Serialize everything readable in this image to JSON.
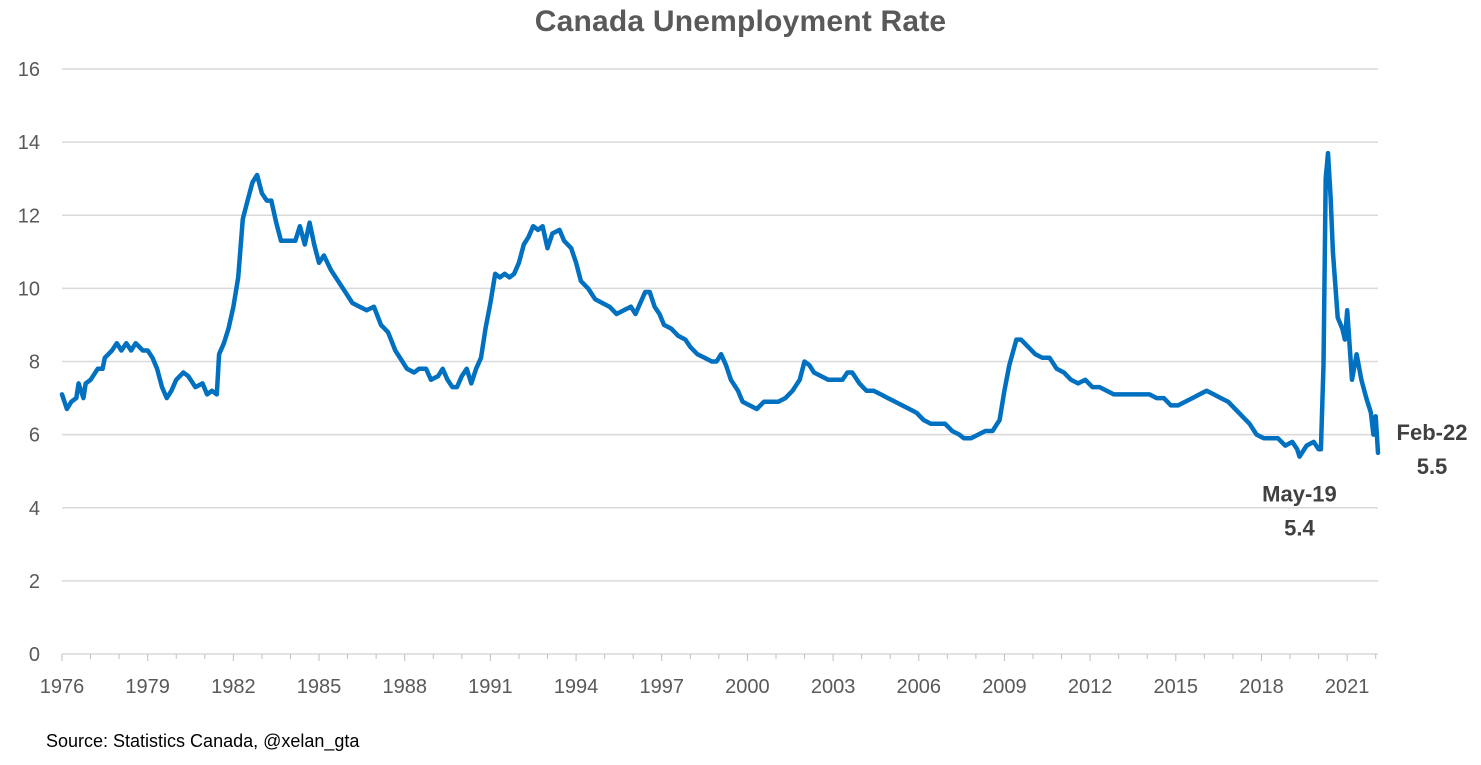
{
  "chart_data": {
    "type": "line",
    "title": "Canada Unemployment Rate",
    "xlabel": "",
    "ylabel": "",
    "ylim": [
      0,
      16
    ],
    "y_ticks": [
      "0",
      "2",
      "4",
      "6",
      "8",
      "10",
      "12",
      "14",
      "16"
    ],
    "x_ticks": [
      "1976",
      "1979",
      "1982",
      "1985",
      "1988",
      "1991",
      "1994",
      "1997",
      "2000",
      "2003",
      "2006",
      "2009",
      "2012",
      "2015",
      "2018",
      "2021"
    ],
    "x_range": [
      1976.0,
      2022.08
    ],
    "grid": true,
    "legend": "none",
    "series": [
      {
        "color": "#0070C0",
        "points": [
          [
            1976.0,
            7.1
          ],
          [
            1976.17,
            6.7
          ],
          [
            1976.33,
            6.9
          ],
          [
            1976.5,
            7.0
          ],
          [
            1976.58,
            7.4
          ],
          [
            1976.75,
            7.0
          ],
          [
            1976.83,
            7.4
          ],
          [
            1977.0,
            7.5
          ],
          [
            1977.25,
            7.8
          ],
          [
            1977.42,
            7.8
          ],
          [
            1977.5,
            8.1
          ],
          [
            1977.75,
            8.3
          ],
          [
            1977.92,
            8.5
          ],
          [
            1978.08,
            8.3
          ],
          [
            1978.25,
            8.5
          ],
          [
            1978.42,
            8.3
          ],
          [
            1978.58,
            8.5
          ],
          [
            1978.83,
            8.3
          ],
          [
            1979.0,
            8.3
          ],
          [
            1979.17,
            8.1
          ],
          [
            1979.33,
            7.8
          ],
          [
            1979.5,
            7.3
          ],
          [
            1979.67,
            7.0
          ],
          [
            1979.83,
            7.2
          ],
          [
            1980.0,
            7.5
          ],
          [
            1980.25,
            7.7
          ],
          [
            1980.42,
            7.6
          ],
          [
            1980.67,
            7.3
          ],
          [
            1980.92,
            7.4
          ],
          [
            1981.08,
            7.1
          ],
          [
            1981.25,
            7.2
          ],
          [
            1981.42,
            7.1
          ],
          [
            1981.5,
            8.2
          ],
          [
            1981.67,
            8.5
          ],
          [
            1981.83,
            8.9
          ],
          [
            1982.0,
            9.5
          ],
          [
            1982.17,
            10.3
          ],
          [
            1982.33,
            11.9
          ],
          [
            1982.5,
            12.4
          ],
          [
            1982.67,
            12.9
          ],
          [
            1982.83,
            13.1
          ],
          [
            1983.0,
            12.6
          ],
          [
            1983.17,
            12.4
          ],
          [
            1983.33,
            12.4
          ],
          [
            1983.5,
            11.8
          ],
          [
            1983.67,
            11.3
          ],
          [
            1983.92,
            11.3
          ],
          [
            1984.17,
            11.3
          ],
          [
            1984.33,
            11.7
          ],
          [
            1984.5,
            11.2
          ],
          [
            1984.67,
            11.8
          ],
          [
            1984.83,
            11.2
          ],
          [
            1985.0,
            10.7
          ],
          [
            1985.17,
            10.9
          ],
          [
            1985.42,
            10.5
          ],
          [
            1985.67,
            10.2
          ],
          [
            1985.92,
            9.9
          ],
          [
            1986.17,
            9.6
          ],
          [
            1986.42,
            9.5
          ],
          [
            1986.67,
            9.4
          ],
          [
            1986.92,
            9.5
          ],
          [
            1987.17,
            9.0
          ],
          [
            1987.42,
            8.8
          ],
          [
            1987.67,
            8.3
          ],
          [
            1987.92,
            8.0
          ],
          [
            1988.08,
            7.8
          ],
          [
            1988.33,
            7.7
          ],
          [
            1988.5,
            7.8
          ],
          [
            1988.75,
            7.8
          ],
          [
            1988.92,
            7.5
          ],
          [
            1989.17,
            7.6
          ],
          [
            1989.33,
            7.8
          ],
          [
            1989.5,
            7.5
          ],
          [
            1989.67,
            7.3
          ],
          [
            1989.83,
            7.3
          ],
          [
            1990.0,
            7.6
          ],
          [
            1990.17,
            7.8
          ],
          [
            1990.33,
            7.4
          ],
          [
            1990.5,
            7.8
          ],
          [
            1990.67,
            8.1
          ],
          [
            1990.83,
            8.9
          ],
          [
            1991.0,
            9.6
          ],
          [
            1991.17,
            10.4
          ],
          [
            1991.33,
            10.3
          ],
          [
            1991.5,
            10.4
          ],
          [
            1991.67,
            10.3
          ],
          [
            1991.83,
            10.4
          ],
          [
            1992.0,
            10.7
          ],
          [
            1992.17,
            11.2
          ],
          [
            1992.33,
            11.4
          ],
          [
            1992.5,
            11.7
          ],
          [
            1992.67,
            11.6
          ],
          [
            1992.83,
            11.7
          ],
          [
            1993.0,
            11.1
          ],
          [
            1993.17,
            11.5
          ],
          [
            1993.42,
            11.6
          ],
          [
            1993.58,
            11.3
          ],
          [
            1993.83,
            11.1
          ],
          [
            1994.0,
            10.7
          ],
          [
            1994.17,
            10.2
          ],
          [
            1994.42,
            10.0
          ],
          [
            1994.67,
            9.7
          ],
          [
            1994.92,
            9.6
          ],
          [
            1995.17,
            9.5
          ],
          [
            1995.42,
            9.3
          ],
          [
            1995.67,
            9.4
          ],
          [
            1995.92,
            9.5
          ],
          [
            1996.08,
            9.3
          ],
          [
            1996.25,
            9.6
          ],
          [
            1996.42,
            9.9
          ],
          [
            1996.58,
            9.9
          ],
          [
            1996.75,
            9.5
          ],
          [
            1996.92,
            9.3
          ],
          [
            1997.08,
            9.0
          ],
          [
            1997.33,
            8.9
          ],
          [
            1997.58,
            8.7
          ],
          [
            1997.83,
            8.6
          ],
          [
            1998.0,
            8.4
          ],
          [
            1998.25,
            8.2
          ],
          [
            1998.5,
            8.1
          ],
          [
            1998.75,
            8.0
          ],
          [
            1998.92,
            8.0
          ],
          [
            1999.08,
            8.2
          ],
          [
            1999.25,
            7.9
          ],
          [
            1999.42,
            7.5
          ],
          [
            1999.67,
            7.2
          ],
          [
            1999.83,
            6.9
          ],
          [
            2000.08,
            6.8
          ],
          [
            2000.33,
            6.7
          ],
          [
            2000.58,
            6.9
          ],
          [
            2000.83,
            6.9
          ],
          [
            2001.08,
            6.9
          ],
          [
            2001.33,
            7.0
          ],
          [
            2001.58,
            7.2
          ],
          [
            2001.83,
            7.5
          ],
          [
            2002.0,
            8.0
          ],
          [
            2002.17,
            7.9
          ],
          [
            2002.33,
            7.7
          ],
          [
            2002.58,
            7.6
          ],
          [
            2002.83,
            7.5
          ],
          [
            2003.08,
            7.5
          ],
          [
            2003.33,
            7.5
          ],
          [
            2003.5,
            7.7
          ],
          [
            2003.67,
            7.7
          ],
          [
            2003.92,
            7.4
          ],
          [
            2004.17,
            7.2
          ],
          [
            2004.42,
            7.2
          ],
          [
            2004.67,
            7.1
          ],
          [
            2004.92,
            7.0
          ],
          [
            2005.17,
            6.9
          ],
          [
            2005.42,
            6.8
          ],
          [
            2005.67,
            6.7
          ],
          [
            2005.92,
            6.6
          ],
          [
            2006.17,
            6.4
          ],
          [
            2006.42,
            6.3
          ],
          [
            2006.67,
            6.3
          ],
          [
            2006.92,
            6.3
          ],
          [
            2007.17,
            6.1
          ],
          [
            2007.42,
            6.0
          ],
          [
            2007.58,
            5.9
          ],
          [
            2007.83,
            5.9
          ],
          [
            2008.08,
            6.0
          ],
          [
            2008.33,
            6.1
          ],
          [
            2008.58,
            6.1
          ],
          [
            2008.83,
            6.4
          ],
          [
            2009.0,
            7.2
          ],
          [
            2009.17,
            7.9
          ],
          [
            2009.42,
            8.6
          ],
          [
            2009.58,
            8.6
          ],
          [
            2009.83,
            8.4
          ],
          [
            2010.08,
            8.2
          ],
          [
            2010.33,
            8.1
          ],
          [
            2010.58,
            8.1
          ],
          [
            2010.83,
            7.8
          ],
          [
            2011.08,
            7.7
          ],
          [
            2011.33,
            7.5
          ],
          [
            2011.58,
            7.4
          ],
          [
            2011.83,
            7.5
          ],
          [
            2012.08,
            7.3
          ],
          [
            2012.33,
            7.3
          ],
          [
            2012.58,
            7.2
          ],
          [
            2012.83,
            7.1
          ],
          [
            2013.08,
            7.1
          ],
          [
            2013.33,
            7.1
          ],
          [
            2013.58,
            7.1
          ],
          [
            2013.83,
            7.1
          ],
          [
            2014.08,
            7.1
          ],
          [
            2014.33,
            7.0
          ],
          [
            2014.58,
            7.0
          ],
          [
            2014.83,
            6.8
          ],
          [
            2015.08,
            6.8
          ],
          [
            2015.33,
            6.9
          ],
          [
            2015.58,
            7.0
          ],
          [
            2015.83,
            7.1
          ],
          [
            2016.08,
            7.2
          ],
          [
            2016.33,
            7.1
          ],
          [
            2016.58,
            7.0
          ],
          [
            2016.83,
            6.9
          ],
          [
            2017.08,
            6.7
          ],
          [
            2017.33,
            6.5
          ],
          [
            2017.58,
            6.3
          ],
          [
            2017.83,
            6.0
          ],
          [
            2018.08,
            5.9
          ],
          [
            2018.33,
            5.9
          ],
          [
            2018.58,
            5.9
          ],
          [
            2018.83,
            5.7
          ],
          [
            2019.08,
            5.8
          ],
          [
            2019.25,
            5.6
          ],
          [
            2019.33,
            5.4
          ],
          [
            2019.58,
            5.7
          ],
          [
            2019.83,
            5.8
          ],
          [
            2020.0,
            5.6
          ],
          [
            2020.08,
            5.6
          ],
          [
            2020.17,
            7.9
          ],
          [
            2020.25,
            13.0
          ],
          [
            2020.33,
            13.7
          ],
          [
            2020.42,
            12.5
          ],
          [
            2020.5,
            11.0
          ],
          [
            2020.67,
            9.2
          ],
          [
            2020.83,
            8.9
          ],
          [
            2020.92,
            8.6
          ],
          [
            2021.0,
            9.4
          ],
          [
            2021.17,
            7.5
          ],
          [
            2021.33,
            8.2
          ],
          [
            2021.5,
            7.5
          ],
          [
            2021.67,
            7.0
          ],
          [
            2021.83,
            6.6
          ],
          [
            2021.92,
            6.0
          ],
          [
            2022.0,
            6.5
          ],
          [
            2022.08,
            5.5
          ]
        ]
      }
    ],
    "annotations": [
      {
        "label": "May-19",
        "value": "5.4",
        "x": 2019.33,
        "y": 5.4
      },
      {
        "label": "Feb-22",
        "value": "5.5",
        "x": 2022.08,
        "y": 5.5
      }
    ]
  },
  "source": "Source: Statistics Canada, @xelan_gta",
  "colors": {
    "line": "#0070C0",
    "grid": "#D9D9D9",
    "axis_text": "#595959",
    "title": "#595959",
    "annotation": "#404040"
  }
}
